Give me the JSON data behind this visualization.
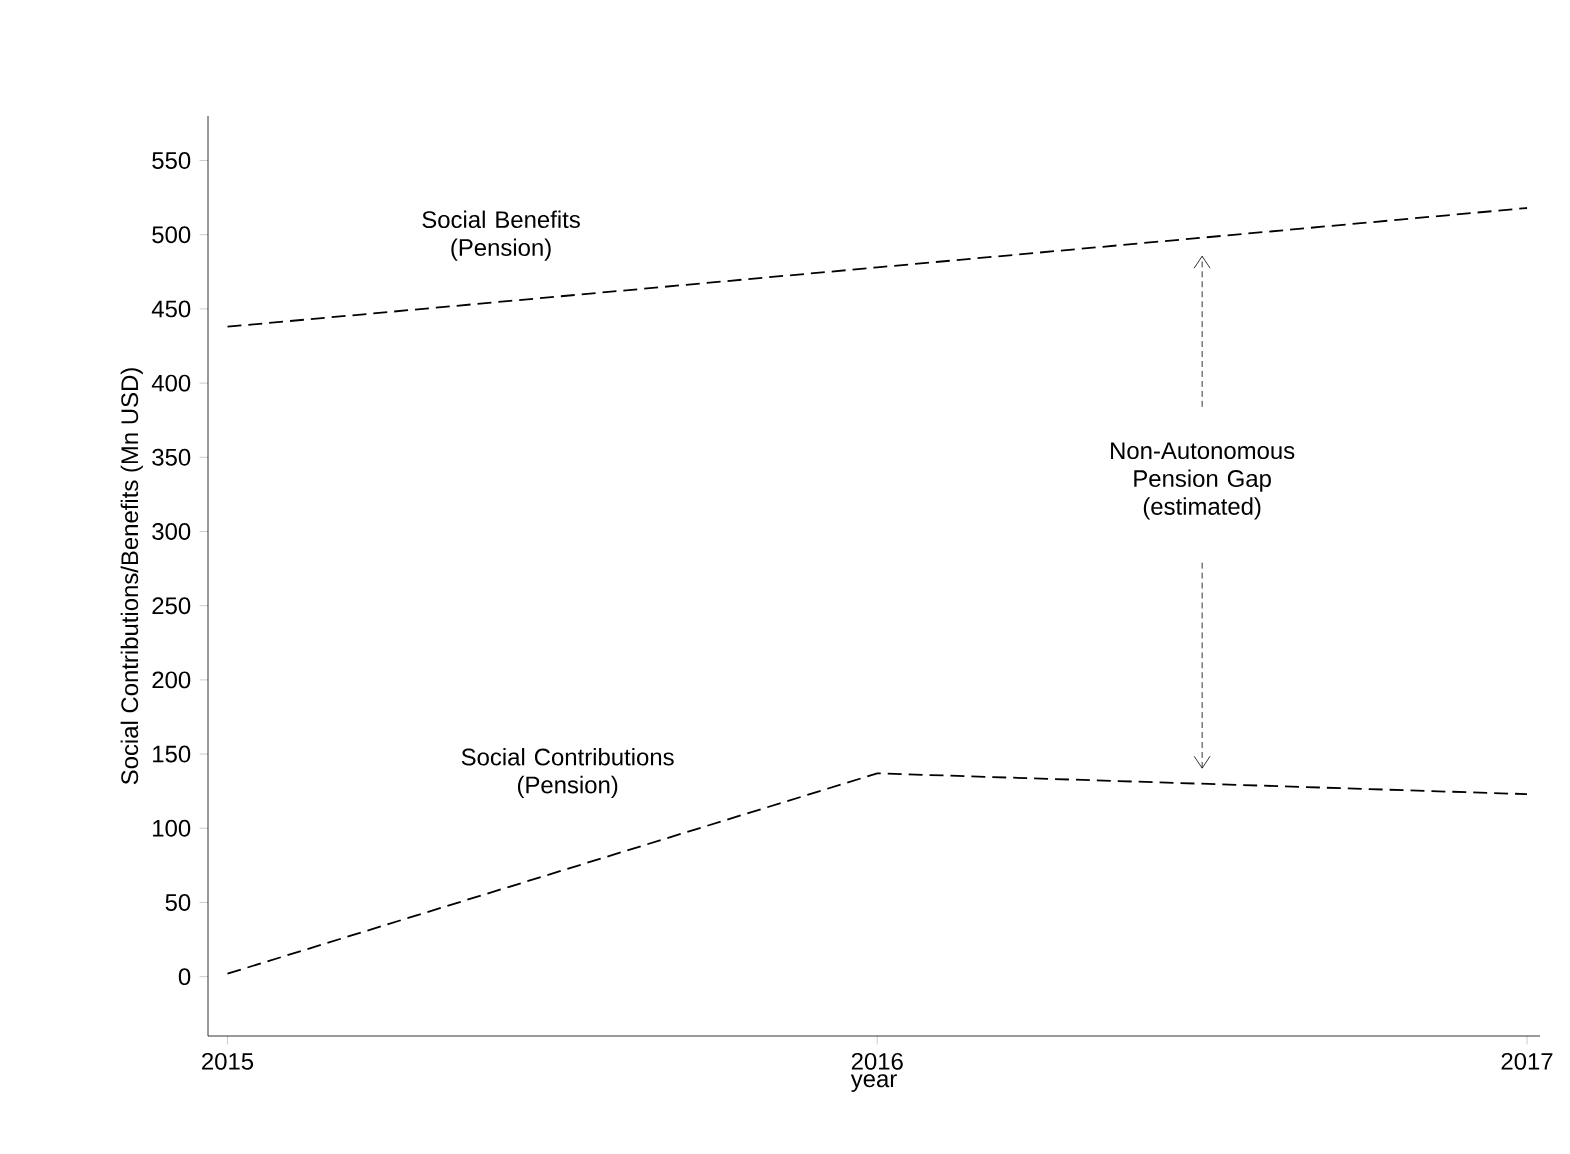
{
  "chart_data": {
    "type": "line",
    "xlabel": "year",
    "ylabel": "Social Contributions/Benefits (Mn USD)",
    "x": [
      2015,
      2016,
      2017
    ],
    "series": [
      {
        "name": "Social Benefits (Pension)",
        "color": "#000000",
        "values": [
          438,
          478,
          518
        ]
      },
      {
        "name": "Social Contributions (Pension)",
        "color": "#000000",
        "values": [
          2,
          137,
          123
        ]
      }
    ],
    "annotations": [
      "Non-Autonomous Pension Gap (estimated)"
    ],
    "xlim": [
      2014.97,
      2017.02
    ],
    "ylim": [
      -40,
      580
    ],
    "xticks": [
      2015,
      2016,
      2017
    ],
    "yticks": [
      0,
      50,
      100,
      150,
      200,
      250,
      300,
      350,
      400,
      450,
      500,
      550
    ],
    "line_style": "dashed",
    "marker": "none"
  }
}
